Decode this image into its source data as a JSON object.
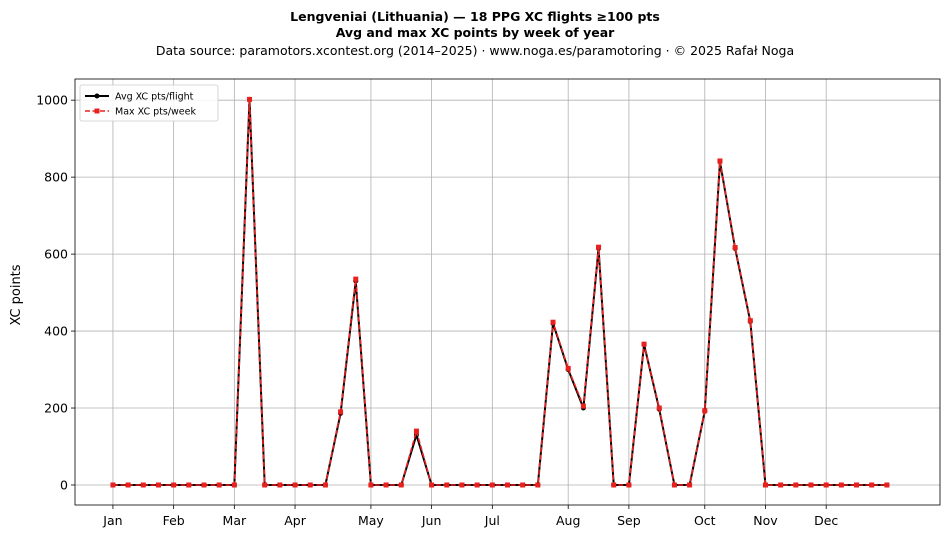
{
  "chart_data": {
    "type": "line",
    "title": "Lengveniai (Lithuania)  —  18 PPG XC flights ≥100 pts",
    "subtitle": "Avg and max XC points by week of year",
    "source": "Data source: paramotors.xcontest.org (2014–2025)  ·  www.noga.es/paramotoring  ·  © 2025 Rafał Noga",
    "xlabel": "",
    "ylabel": "XC points",
    "x_ticks": [
      {
        "label": "Jan",
        "week": 1
      },
      {
        "label": "Feb",
        "week": 5
      },
      {
        "label": "Mar",
        "week": 9
      },
      {
        "label": "Apr",
        "week": 13
      },
      {
        "label": "May",
        "week": 18
      },
      {
        "label": "Jun",
        "week": 22
      },
      {
        "label": "Jul",
        "week": 26
      },
      {
        "label": "Aug",
        "week": 31
      },
      {
        "label": "Sep",
        "week": 35
      },
      {
        "label": "Oct",
        "week": 40
      },
      {
        "label": "Nov",
        "week": 44
      },
      {
        "label": "Dec",
        "week": 48
      }
    ],
    "y_ticks": [
      0,
      200,
      400,
      600,
      800,
      1000
    ],
    "xlim": [
      -1.5,
      55.5
    ],
    "ylim": [
      -52,
      1055
    ],
    "grid": true,
    "legend_position": "top-left",
    "x": [
      1,
      2,
      3,
      4,
      5,
      6,
      7,
      8,
      9,
      10,
      11,
      12,
      13,
      14,
      15,
      16,
      17,
      18,
      19,
      20,
      21,
      22,
      23,
      24,
      25,
      26,
      27,
      28,
      29,
      30,
      31,
      32,
      33,
      34,
      35,
      36,
      37,
      38,
      39,
      40,
      41,
      42,
      43,
      44,
      45,
      46,
      47,
      48,
      49,
      50,
      51,
      52
    ],
    "series": [
      {
        "name": "Avg XC pts/flight",
        "color": "#000000",
        "marker": "circle",
        "style": "solid",
        "values": [
          0,
          0,
          0,
          0,
          0,
          0,
          0,
          0,
          0,
          1002,
          0,
          0,
          0,
          0,
          0,
          186,
          530,
          0,
          0,
          0,
          130,
          0,
          0,
          0,
          0,
          0,
          0,
          0,
          0,
          420,
          300,
          200,
          615,
          0,
          0,
          365,
          197,
          0,
          0,
          192,
          840,
          615,
          425,
          0,
          0,
          0,
          0,
          0,
          0,
          0,
          0,
          0
        ]
      },
      {
        "name": "Max XC pts/week",
        "color": "#e8211e",
        "marker": "square",
        "style": "dashed",
        "values": [
          0,
          0,
          0,
          0,
          0,
          0,
          0,
          0,
          0,
          1002,
          0,
          0,
          0,
          0,
          0,
          190,
          535,
          0,
          0,
          0,
          140,
          0,
          0,
          0,
          0,
          0,
          0,
          0,
          0,
          423,
          303,
          205,
          618,
          0,
          0,
          366,
          200,
          0,
          0,
          193,
          842,
          617,
          427,
          0,
          0,
          0,
          0,
          0,
          0,
          0,
          0,
          0
        ]
      }
    ]
  }
}
